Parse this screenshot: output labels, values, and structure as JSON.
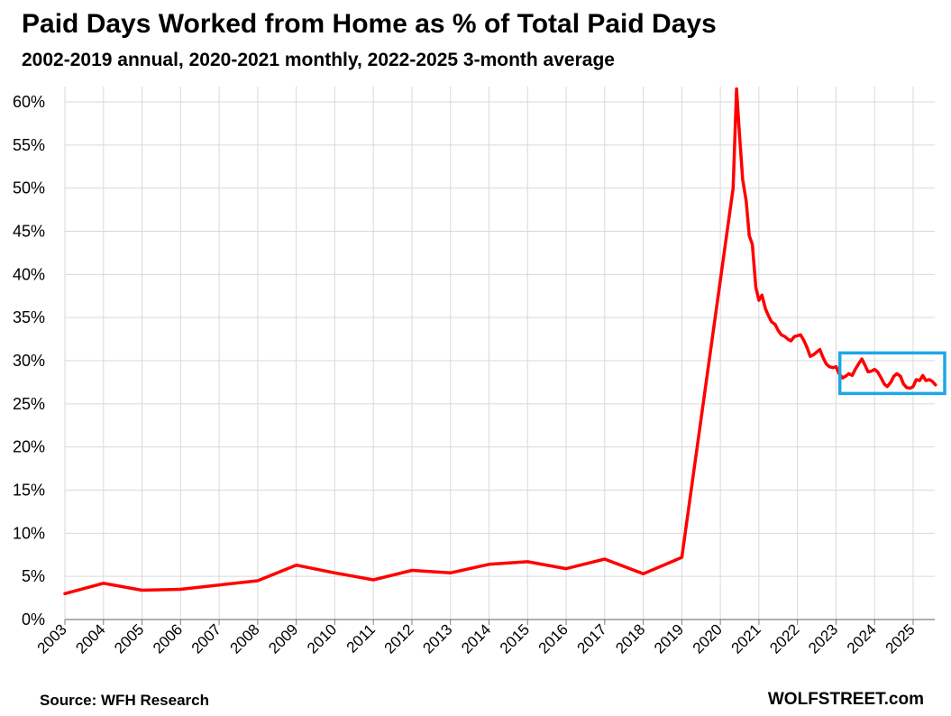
{
  "title": "Paid Days Worked from Home as % of Total Paid Days",
  "subtitle": "2002-2019 annual, 2020-2021 monthly, 2022-2025 3-month average",
  "source": "Source: WFH Research",
  "brand": "WOLFSTREET.com",
  "colors": {
    "line": "#ff0000",
    "highlight": "#1ea7e6",
    "grid": "#d9d9d9",
    "axis": "#7f7f7f"
  },
  "chart_data": {
    "type": "line",
    "title": "Paid Days Worked from Home as % of Total Paid Days",
    "xlabel": "",
    "ylabel": "",
    "xlim": [
      2003,
      2025.7
    ],
    "ylim": [
      0,
      62
    ],
    "y_ticks": [
      0,
      5,
      10,
      15,
      20,
      25,
      30,
      35,
      40,
      45,
      50,
      55,
      60
    ],
    "y_tick_labels": [
      "0%",
      "5%",
      "10%",
      "15%",
      "20%",
      "25%",
      "30%",
      "35%",
      "40%",
      "45%",
      "50%",
      "55%",
      "60%"
    ],
    "x_ticks": [
      2003,
      2004,
      2005,
      2006,
      2007,
      2008,
      2009,
      2010,
      2011,
      2012,
      2013,
      2014,
      2015,
      2016,
      2017,
      2018,
      2019,
      2020,
      2021,
      2022,
      2023,
      2024,
      2025
    ],
    "x_tick_labels": [
      "2003",
      "2004",
      "2005",
      "2006",
      "2007",
      "2008",
      "2009",
      "2010",
      "2011",
      "2012",
      "2013",
      "2014",
      "2015",
      "2016",
      "2017",
      "2018",
      "2019",
      "2020",
      "2021",
      "2022",
      "2023",
      "2024",
      "2025"
    ],
    "grid": true,
    "highlight_box": {
      "x_range": [
        2023.1,
        2025.9
      ],
      "y_range": [
        26.2,
        30.9
      ]
    },
    "series": [
      {
        "x": [
          2003,
          2004,
          2005,
          2006,
          2007,
          2008,
          2009,
          2010,
          2011,
          2012,
          2013,
          2014,
          2015,
          2016,
          2017,
          2018,
          2019,
          2020.33,
          2020.42,
          2020.5,
          2020.58,
          2020.67,
          2020.75,
          2020.83,
          2020.92,
          2021.0,
          2021.08,
          2021.17,
          2021.25,
          2021.33,
          2021.42,
          2021.5,
          2021.58,
          2021.67,
          2021.75,
          2021.83,
          2021.92,
          2022.0,
          2022.08,
          2022.17,
          2022.25,
          2022.33,
          2022.42,
          2022.5,
          2022.58,
          2022.67,
          2022.75,
          2022.83,
          2022.92,
          2023.0,
          2023.08,
          2023.17,
          2023.25,
          2023.33,
          2023.42,
          2023.5,
          2023.58,
          2023.67,
          2023.75,
          2023.83,
          2023.92,
          2024.0,
          2024.08,
          2024.17,
          2024.25,
          2024.33,
          2024.42,
          2024.5,
          2024.58,
          2024.67,
          2024.75,
          2024.83,
          2024.92,
          2025.0,
          2025.08,
          2025.17,
          2025.25,
          2025.33,
          2025.42,
          2025.5,
          2025.58
        ],
        "values": [
          3.0,
          4.2,
          3.4,
          3.5,
          4.0,
          4.5,
          6.3,
          5.4,
          4.6,
          5.7,
          5.4,
          6.4,
          6.7,
          5.9,
          7.0,
          5.3,
          7.2,
          50.0,
          61.5,
          56.0,
          51.0,
          48.5,
          44.5,
          43.5,
          38.5,
          37.0,
          37.6,
          36.0,
          35.2,
          34.5,
          34.2,
          33.5,
          33.0,
          32.8,
          32.5,
          32.3,
          32.8,
          32.9,
          33.0,
          32.3,
          31.5,
          30.5,
          30.7,
          31.0,
          31.3,
          30.3,
          29.6,
          29.3,
          29.2,
          29.3,
          28.5,
          28.0,
          28.2,
          28.5,
          28.3,
          29.0,
          29.6,
          30.2,
          29.5,
          28.7,
          28.8,
          29.0,
          28.7,
          28.0,
          27.3,
          27.0,
          27.5,
          28.2,
          28.5,
          28.2,
          27.3,
          26.9,
          26.8,
          27.0,
          27.8,
          27.7,
          28.3,
          27.7,
          27.8,
          27.6,
          27.2
        ]
      }
    ]
  }
}
